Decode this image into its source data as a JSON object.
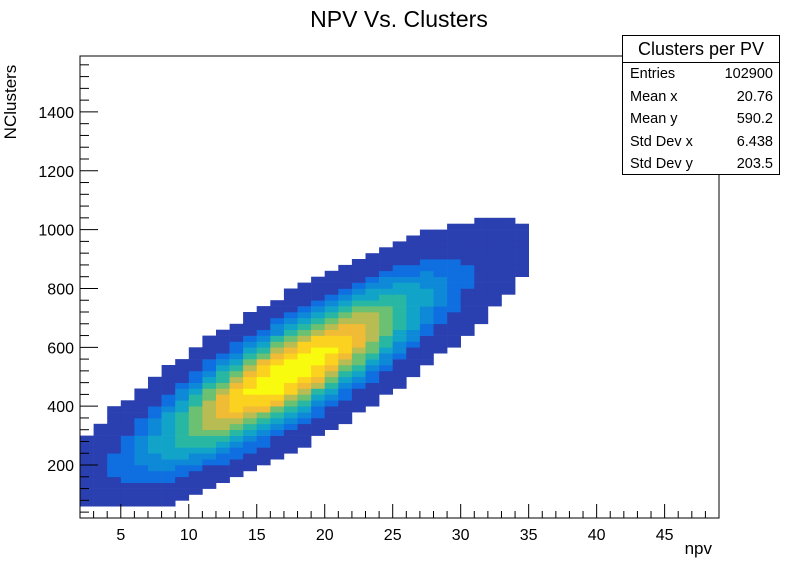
{
  "chart_data": {
    "type": "heatmap",
    "title": "NPV Vs. Clusters",
    "xlabel": "npv",
    "ylabel": "NClusters",
    "xlim": [
      2,
      49
    ],
    "ylim": [
      20,
      1590
    ],
    "x_ticks": [
      5,
      10,
      15,
      20,
      25,
      30,
      35,
      40,
      45
    ],
    "y_ticks": [
      200,
      400,
      600,
      800,
      1000,
      1200,
      1400
    ],
    "grid": false,
    "colormap": [
      "#352a87",
      "#2a3fb0",
      "#0f6ee0",
      "#0d89d8",
      "#12a4c8",
      "#28b7a2",
      "#6bc072",
      "#b7bc53",
      "#f0bb35",
      "#fad21f",
      "#f9fb0e"
    ],
    "density_model": {
      "mean_x": 17.5,
      "intercept": 90,
      "slope": 24.5,
      "sigma_x": 6.2,
      "sigma_y": 95,
      "extent_sigma": 2.9
    },
    "stats": {
      "title": "Clusters per PV",
      "rows": [
        {
          "label": "Entries",
          "value": "102900"
        },
        {
          "label": "Mean x",
          "value": "20.76"
        },
        {
          "label": "Mean y",
          "value": "590.2"
        },
        {
          "label": "Std Dev x",
          "value": "6.438"
        },
        {
          "label": "Std Dev y",
          "value": "203.5"
        }
      ]
    }
  }
}
